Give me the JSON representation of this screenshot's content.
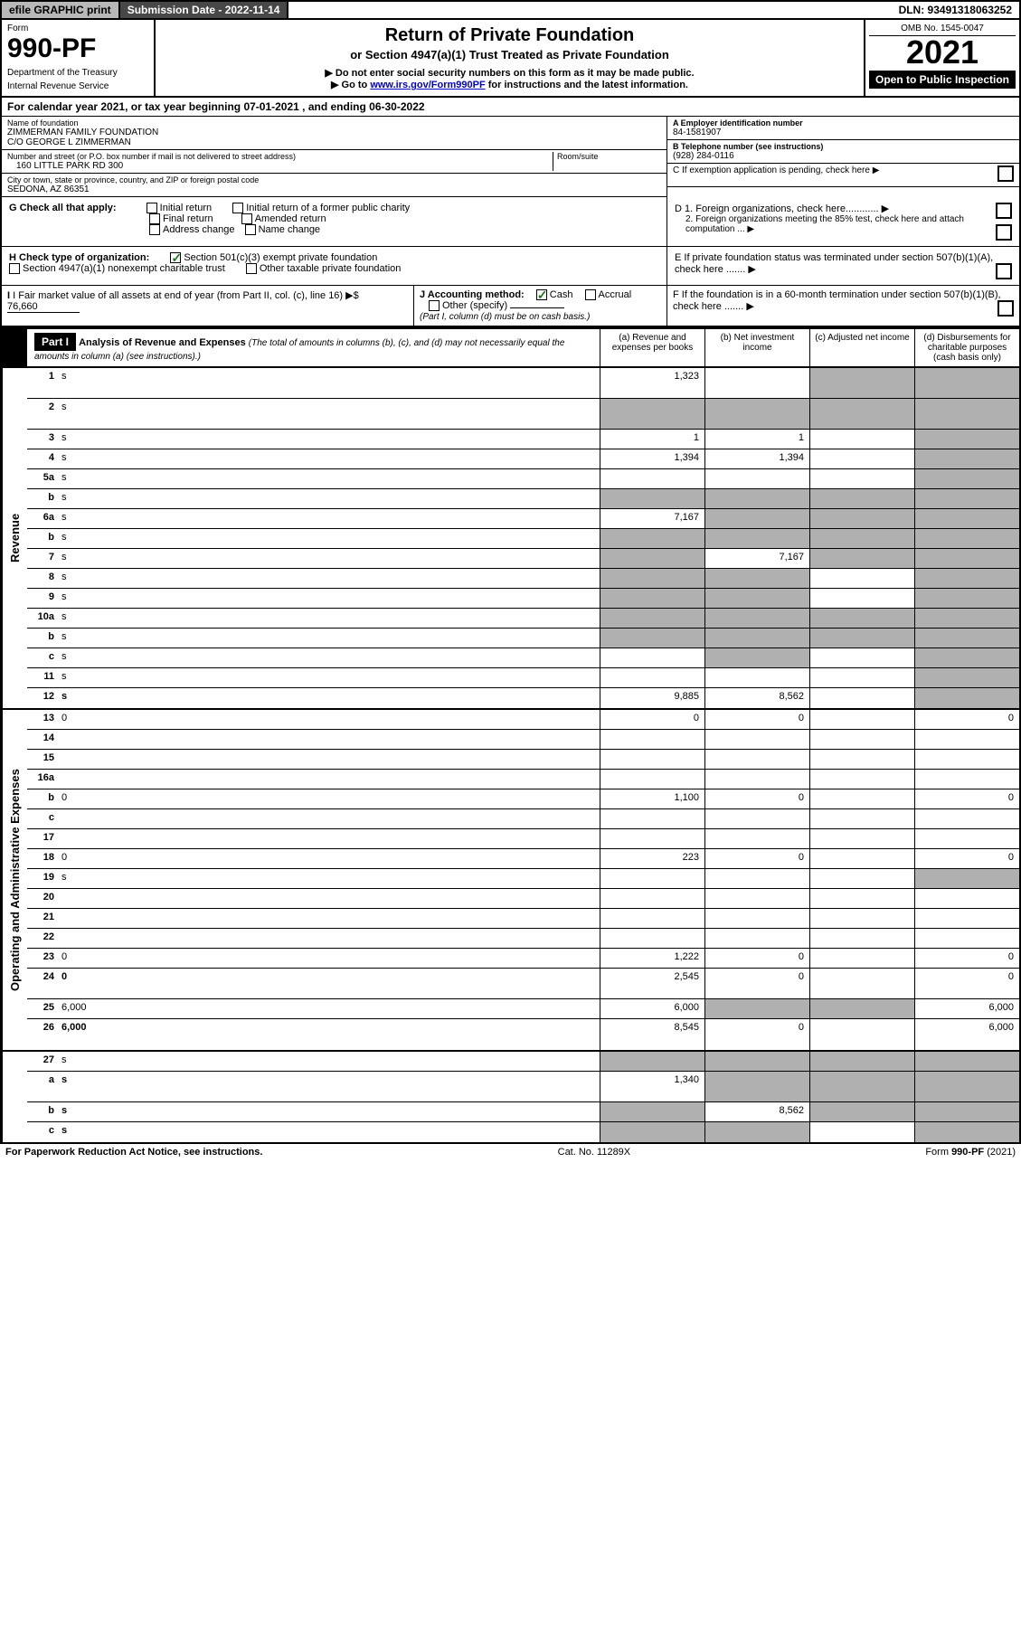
{
  "topbar": {
    "efile": "efile GRAPHIC print",
    "submission": "Submission Date - 2022-11-14",
    "dln": "DLN: 93491318063252"
  },
  "header": {
    "form_label": "Form",
    "form_number": "990-PF",
    "dept": "Department of the Treasury",
    "irs": "Internal Revenue Service",
    "title": "Return of Private Foundation",
    "subtitle": "or Section 4947(a)(1) Trust Treated as Private Foundation",
    "note1": "▶ Do not enter social security numbers on this form as it may be made public.",
    "note2_pre": "▶ Go to ",
    "note2_link": "www.irs.gov/Form990PF",
    "note2_post": " for instructions and the latest information.",
    "omb": "OMB No. 1545-0047",
    "year": "2021",
    "open": "Open to Public Inspection"
  },
  "calyear": "For calendar year 2021, or tax year beginning 07-01-2021                    , and ending 06-30-2022",
  "info": {
    "name_lbl": "Name of foundation",
    "name_val": "ZIMMERMAN FAMILY FOUNDATION\nC/O GEORGE L ZIMMERMAN",
    "street_lbl": "Number and street (or P.O. box number if mail is not delivered to street address)",
    "street_val": "160 LITTLE PARK RD 300",
    "room_lbl": "Room/suite",
    "city_lbl": "City or town, state or province, country, and ZIP or foreign postal code",
    "city_val": "SEDONA, AZ  86351",
    "ein_lbl": "A Employer identification number",
    "ein_val": "84-1581907",
    "tel_lbl": "B Telephone number (see instructions)",
    "tel_val": "(928) 284-0116",
    "c_lbl": "C If exemption application is pending, check here"
  },
  "g": {
    "label": "G Check all that apply:",
    "opts": [
      "Initial return",
      "Final return",
      "Address change",
      "Initial return of a former public charity",
      "Amended return",
      "Name change"
    ]
  },
  "d": {
    "d1": "D 1. Foreign organizations, check here............",
    "d2": "2. Foreign organizations meeting the 85% test, check here and attach computation ...",
    "e": "E  If private foundation status was terminated under section 507(b)(1)(A), check here .......",
    "f": "F  If the foundation is in a 60-month termination under section 507(b)(1)(B), check here ......."
  },
  "h": {
    "label": "H Check type of organization:",
    "opt1": "Section 501(c)(3) exempt private foundation",
    "opt2": "Section 4947(a)(1) nonexempt charitable trust",
    "opt3": "Other taxable private foundation"
  },
  "i": {
    "label": "I Fair market value of all assets at end of year (from Part II, col. (c), line 16)",
    "val": "76,660"
  },
  "j": {
    "label": "J Accounting method:",
    "cash": "Cash",
    "accrual": "Accrual",
    "other": "Other (specify)",
    "note": "(Part I, column (d) must be on cash basis.)"
  },
  "part1": {
    "label": "Part I",
    "title": "Analysis of Revenue and Expenses",
    "note": "(The total of amounts in columns (b), (c), and (d) may not necessarily equal the amounts in column (a) (see instructions).)",
    "col_a": "(a) Revenue and expenses per books",
    "col_b": "(b) Net investment income",
    "col_c": "(c) Adjusted net income",
    "col_d": "(d) Disbursements for charitable purposes (cash basis only)"
  },
  "sidelabels": {
    "revenue": "Revenue",
    "expenses": "Operating and Administrative Expenses"
  },
  "rows": [
    {
      "n": "1",
      "d": "s",
      "a": "1,323",
      "b": "",
      "c": "s",
      "tall": true
    },
    {
      "n": "2",
      "d": "s",
      "a": "s",
      "b": "s",
      "c": "s",
      "tall": true
    },
    {
      "n": "3",
      "d": "s",
      "a": "1",
      "b": "1",
      "c": ""
    },
    {
      "n": "4",
      "d": "s",
      "a": "1,394",
      "b": "1,394",
      "c": ""
    },
    {
      "n": "5a",
      "d": "s",
      "a": "",
      "b": "",
      "c": ""
    },
    {
      "n": "b",
      "d": "s",
      "a": "s",
      "b": "s",
      "c": "s"
    },
    {
      "n": "6a",
      "d": "s",
      "a": "7,167",
      "b": "s",
      "c": "s"
    },
    {
      "n": "b",
      "d": "s",
      "a": "s",
      "b": "s",
      "c": "s"
    },
    {
      "n": "7",
      "d": "s",
      "a": "s",
      "b": "7,167",
      "c": "s"
    },
    {
      "n": "8",
      "d": "s",
      "a": "s",
      "b": "s",
      "c": ""
    },
    {
      "n": "9",
      "d": "s",
      "a": "s",
      "b": "s",
      "c": ""
    },
    {
      "n": "10a",
      "d": "s",
      "a": "s",
      "b": "s",
      "c": "s"
    },
    {
      "n": "b",
      "d": "s",
      "a": "s",
      "b": "s",
      "c": "s"
    },
    {
      "n": "c",
      "d": "s",
      "a": "",
      "b": "s",
      "c": ""
    },
    {
      "n": "11",
      "d": "s",
      "a": "",
      "b": "",
      "c": ""
    },
    {
      "n": "12",
      "d": "s",
      "a": "9,885",
      "b": "8,562",
      "c": "",
      "bold": true
    }
  ],
  "exp_rows": [
    {
      "n": "13",
      "d": "0",
      "a": "0",
      "b": "0",
      "c": ""
    },
    {
      "n": "14",
      "d": "",
      "a": "",
      "b": "",
      "c": ""
    },
    {
      "n": "15",
      "d": "",
      "a": "",
      "b": "",
      "c": ""
    },
    {
      "n": "16a",
      "d": "",
      "a": "",
      "b": "",
      "c": ""
    },
    {
      "n": "b",
      "d": "0",
      "a": "1,100",
      "b": "0",
      "c": ""
    },
    {
      "n": "c",
      "d": "",
      "a": "",
      "b": "",
      "c": ""
    },
    {
      "n": "17",
      "d": "",
      "a": "",
      "b": "",
      "c": ""
    },
    {
      "n": "18",
      "d": "0",
      "a": "223",
      "b": "0",
      "c": ""
    },
    {
      "n": "19",
      "d": "s",
      "a": "",
      "b": "",
      "c": ""
    },
    {
      "n": "20",
      "d": "",
      "a": "",
      "b": "",
      "c": ""
    },
    {
      "n": "21",
      "d": "",
      "a": "",
      "b": "",
      "c": ""
    },
    {
      "n": "22",
      "d": "",
      "a": "",
      "b": "",
      "c": ""
    },
    {
      "n": "23",
      "d": "0",
      "a": "1,222",
      "b": "0",
      "c": ""
    },
    {
      "n": "24",
      "d": "0",
      "a": "2,545",
      "b": "0",
      "c": "",
      "bold": true,
      "tall": true
    },
    {
      "n": "25",
      "d": "6,000",
      "a": "6,000",
      "b": "s",
      "c": "s"
    },
    {
      "n": "26",
      "d": "6,000",
      "a": "8,545",
      "b": "0",
      "c": "",
      "bold": true,
      "tall": true
    }
  ],
  "bottom_rows": [
    {
      "n": "27",
      "d": "s",
      "a": "s",
      "b": "s",
      "c": "s"
    },
    {
      "n": "a",
      "d": "s",
      "a": "1,340",
      "b": "s",
      "c": "s",
      "bold": true,
      "tall": true
    },
    {
      "n": "b",
      "d": "s",
      "a": "s",
      "b": "8,562",
      "c": "s",
      "bold": true
    },
    {
      "n": "c",
      "d": "s",
      "a": "s",
      "b": "s",
      "c": "",
      "bold": true
    }
  ],
  "footer": {
    "left": "For Paperwork Reduction Act Notice, see instructions.",
    "mid": "Cat. No. 11289X",
    "right": "Form 990-PF (2021)"
  },
  "colors": {
    "shade": "#b0b0b0",
    "topgray": "#b8b8b8",
    "topdark": "#474747",
    "link": "#0000cc",
    "check": "#1a7a1a"
  }
}
